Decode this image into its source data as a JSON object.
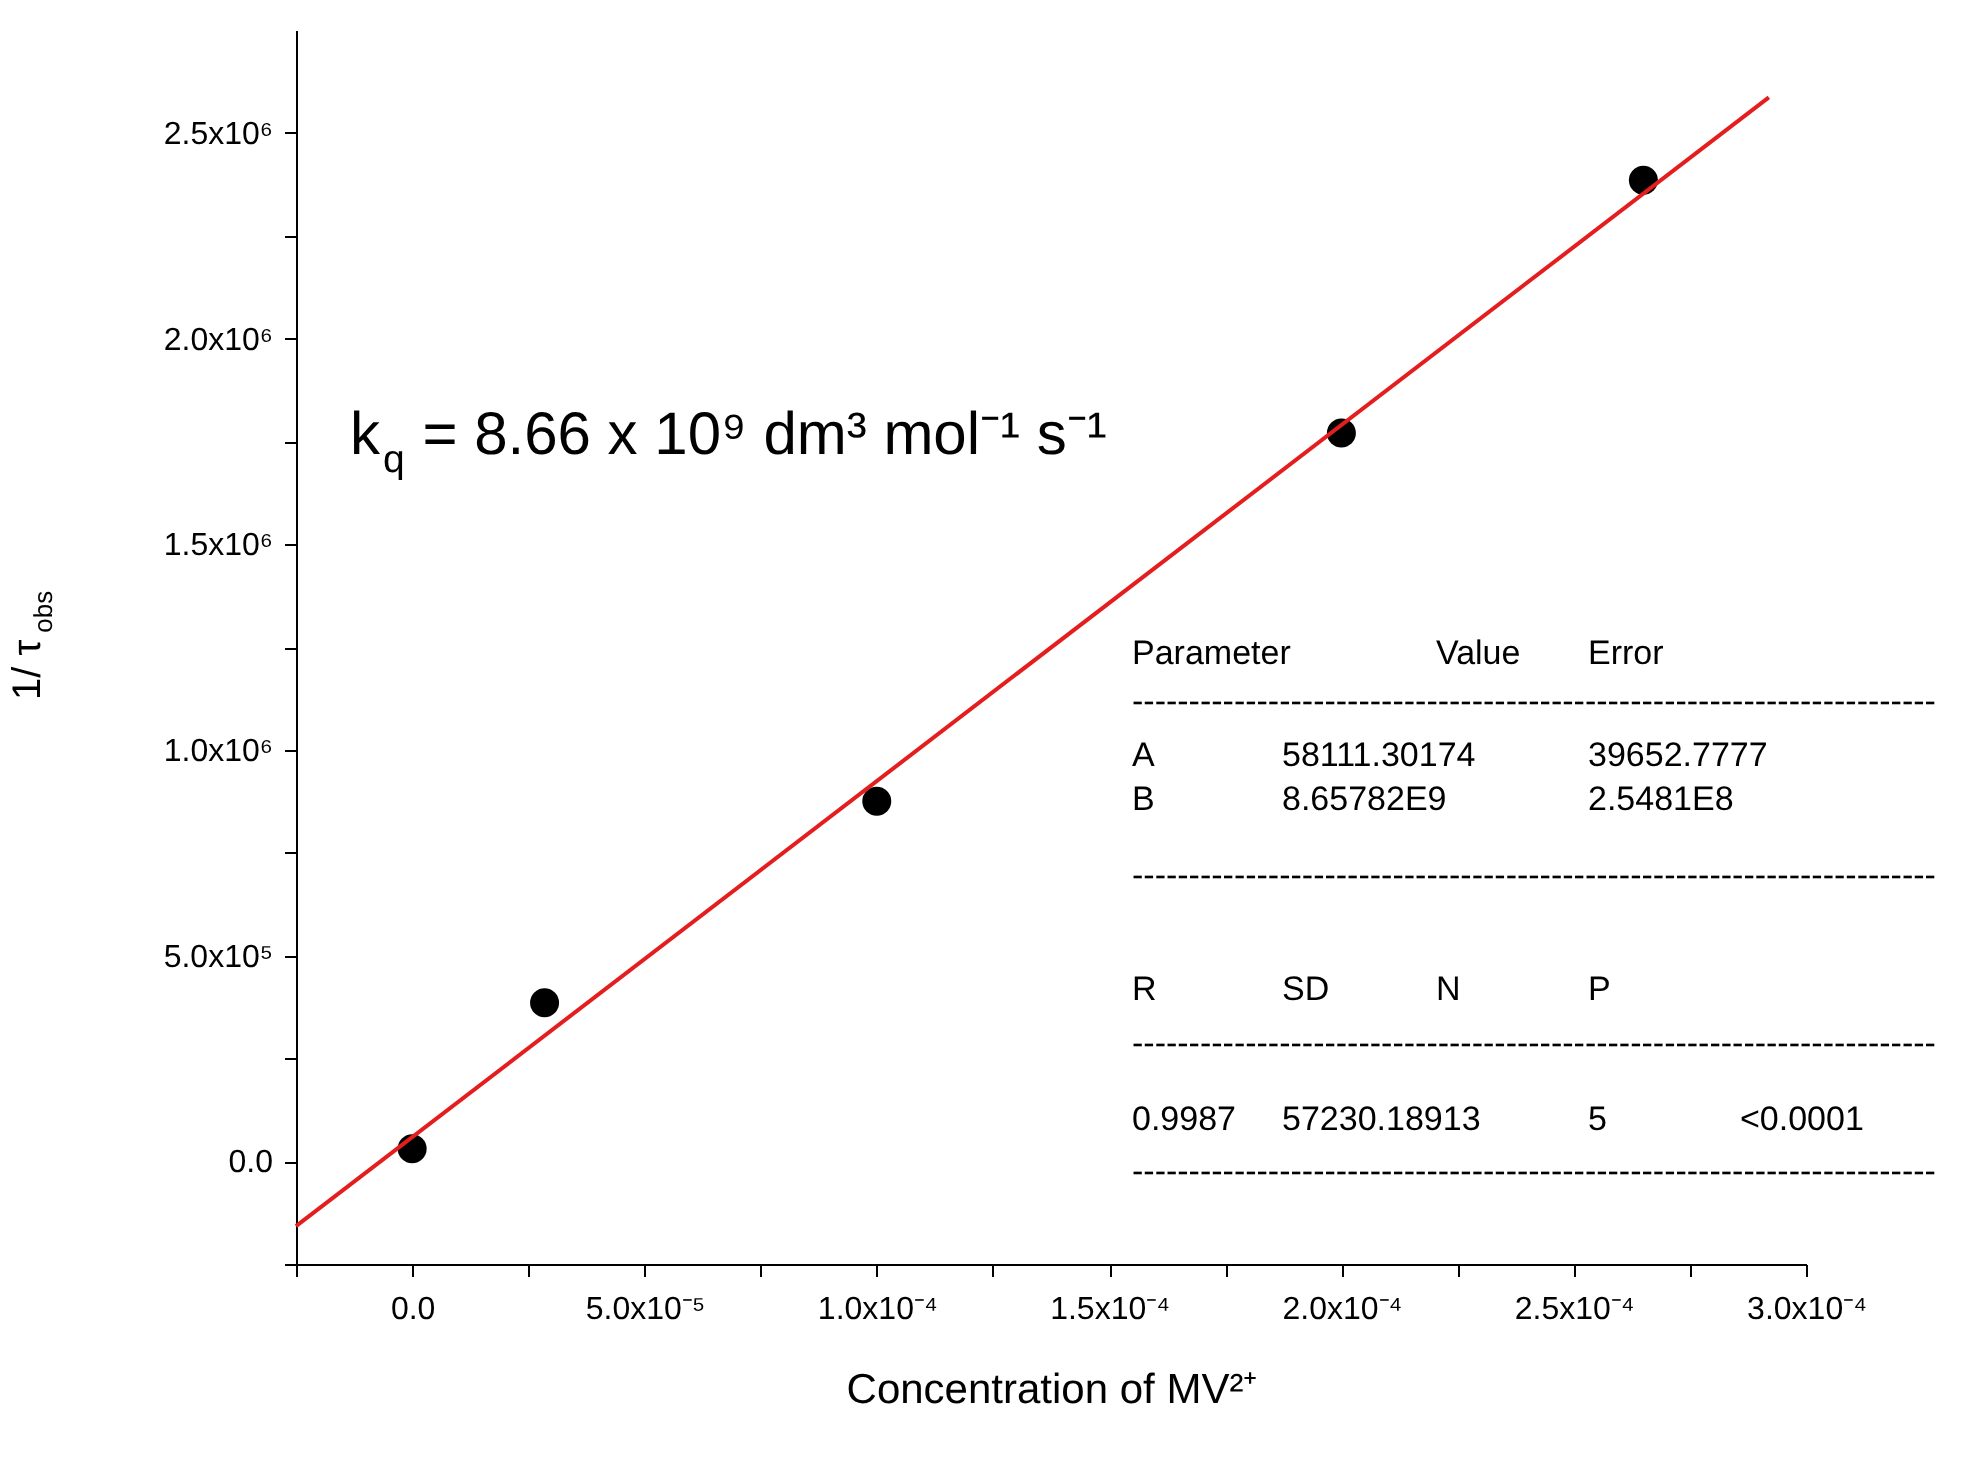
{
  "chart_data": {
    "type": "scatter",
    "xlabel": "Concentration of MV²⁺",
    "ylabel": "1/ τ$_{obs}$",
    "xlim": [
      -2.5e-05,
      0.0003
    ],
    "ylim": [
      -250000.0,
      2750000.0
    ],
    "xticks": [
      {
        "value": -2.5e-05,
        "label": null
      },
      {
        "value": 0,
        "label": "0.0"
      },
      {
        "value": 2.5e-05,
        "label": null
      },
      {
        "value": 5e-05,
        "label": "5.0x10⁻⁵"
      },
      {
        "value": 7.5e-05,
        "label": null
      },
      {
        "value": 0.0001,
        "label": "1.0x10⁻⁴"
      },
      {
        "value": 0.000125,
        "label": null
      },
      {
        "value": 0.00015,
        "label": "1.5x10⁻⁴"
      },
      {
        "value": 0.000175,
        "label": null
      },
      {
        "value": 0.0002,
        "label": "2.0x10⁻⁴"
      },
      {
        "value": 0.000225,
        "label": null
      },
      {
        "value": 0.00025,
        "label": "2.5x10⁻⁴"
      },
      {
        "value": 0.000275,
        "label": null
      },
      {
        "value": 0.0003,
        "label": "3.0x10⁻⁴"
      }
    ],
    "yticks": [
      {
        "value": -250000.0,
        "label": null
      },
      {
        "value": 0,
        "label": "0.0"
      },
      {
        "value": 250000.0,
        "label": null
      },
      {
        "value": 500000.0,
        "label": "5.0x10⁵"
      },
      {
        "value": 750000.0,
        "label": null
      },
      {
        "value": 1000000.0,
        "label": "1.0x10⁶"
      },
      {
        "value": 1250000.0,
        "label": null
      },
      {
        "value": 1500000.0,
        "label": "1.5x10⁶"
      },
      {
        "value": 1750000.0,
        "label": null
      },
      {
        "value": 2000000.0,
        "label": "2.0x10⁶"
      },
      {
        "value": 2250000.0,
        "label": null
      },
      {
        "value": 2500000.0,
        "label": "2.5x10⁶"
      }
    ],
    "series": [
      {
        "marker": "circle",
        "color": "#000000",
        "x": [
          0,
          2.85e-05,
          0.0001,
          0.0002,
          0.000265
        ],
        "values": [
          30000.0,
          385000.0,
          875000.0,
          1770000.0,
          2385000.0
        ]
      },
      {
        "type": "line",
        "color": "#e41e1e",
        "x": [
          -2.5e-05,
          0.000292
        ],
        "values": [
          -158000.0,
          2586000.0
        ]
      }
    ],
    "annotations": [
      "k$_{q}$ = 8.66  x 10⁹ dm³ mol⁻¹ s⁻¹",
      "Parameter",
      "Value",
      "Error",
      "-----------------------------------------------------------------------",
      "A",
      "58111.30174",
      "39652.7777",
      "B",
      "8.65782E9",
      "2.5481E8",
      "-----------------------------------------------------------------------",
      "R",
      "SD",
      "N",
      "P",
      "-----------------------------------------------------------------------",
      "0.9987",
      "57230.18913",
      "5",
      "<0.0001",
      "-----------------------------------------------------------------------"
    ]
  }
}
